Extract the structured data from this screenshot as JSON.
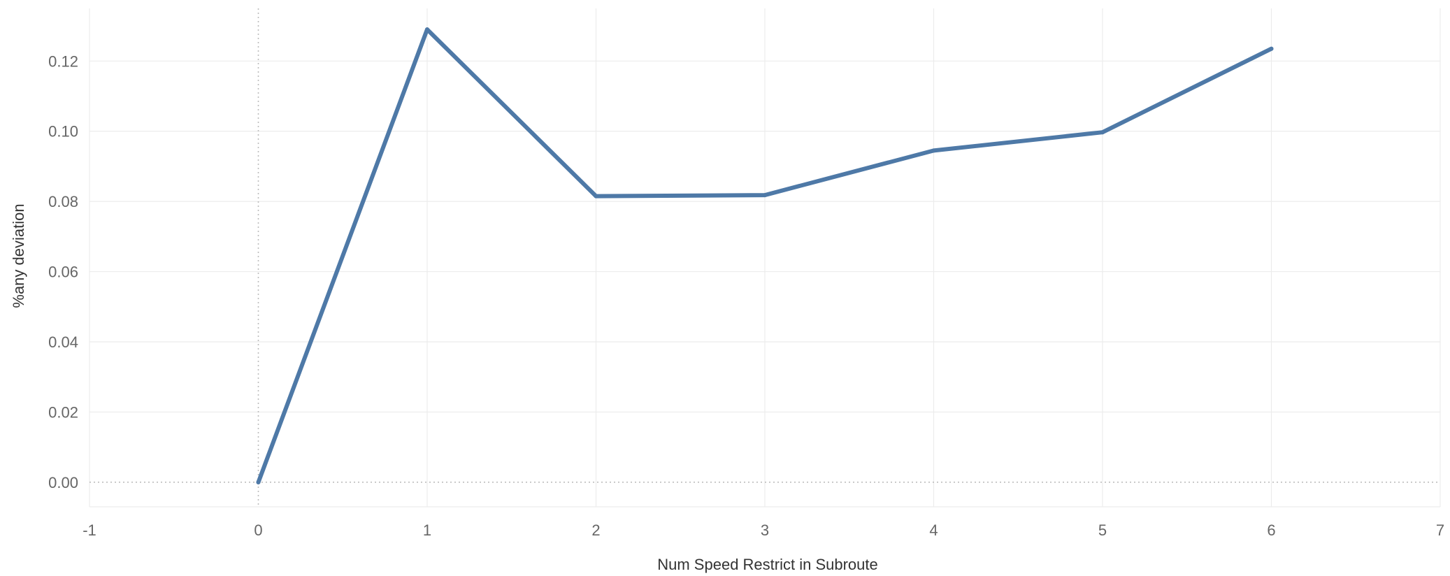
{
  "chart_data": {
    "type": "line",
    "title": "",
    "xlabel": "Num Speed Restrict in Subroute",
    "ylabel": "%any deviation",
    "xlim": [
      -1,
      7
    ],
    "ylim": [
      -0.007,
      0.135
    ],
    "x_ticks": [
      -1,
      0,
      1,
      2,
      3,
      4,
      5,
      6,
      7
    ],
    "x_tick_labels": [
      "-1",
      "0",
      "1",
      "2",
      "3",
      "4",
      "5",
      "6",
      "7"
    ],
    "y_ticks": [
      0.0,
      0.02,
      0.04,
      0.06,
      0.08,
      0.1,
      0.12
    ],
    "y_tick_labels": [
      "0.00",
      "0.02",
      "0.04",
      "0.06",
      "0.08",
      "0.10",
      "0.12"
    ],
    "grid": true,
    "series": [
      {
        "color": "#4e79a7",
        "x": [
          0,
          1,
          2,
          3,
          4,
          5,
          6
        ],
        "values": [
          0.0,
          0.129,
          0.0815,
          0.0818,
          0.0945,
          0.0997,
          0.1235
        ]
      }
    ]
  }
}
